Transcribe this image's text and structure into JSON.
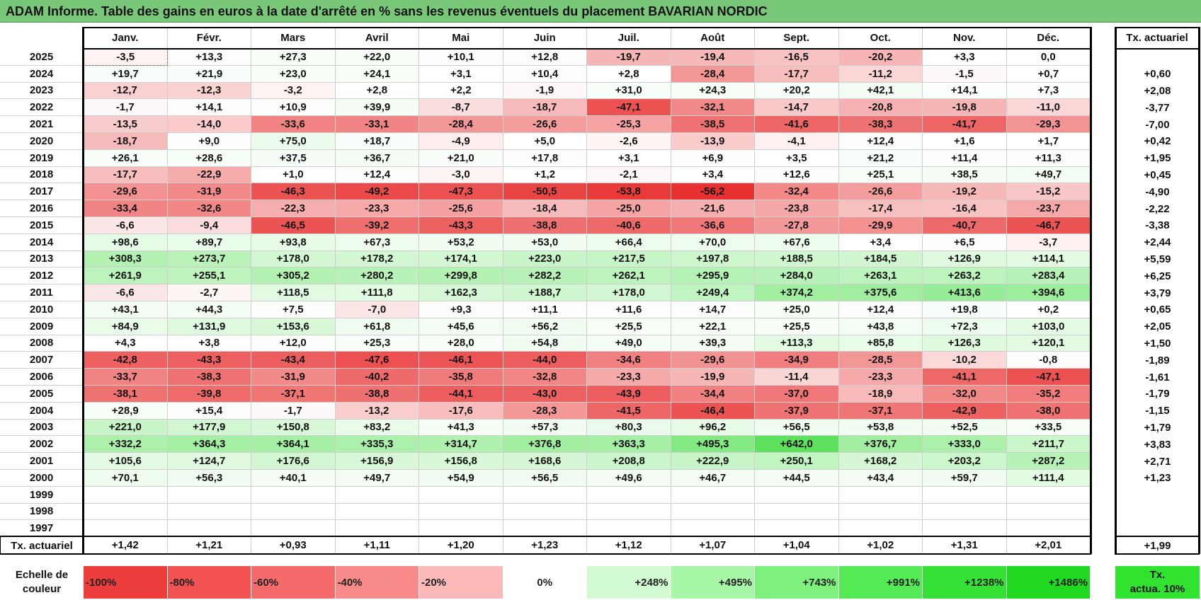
{
  "title": "ADAM Informe. Table des gains en euros à la date d'arrêté en % sans les revenus éventuels du placement BAVARIAN NORDIC",
  "months": [
    "Janv.",
    "Févr.",
    "Mars",
    "Avril",
    "Mai",
    "Juin",
    "Juil.",
    "Août",
    "Sept.",
    "Oct.",
    "Nov.",
    "Déc."
  ],
  "tx_header": "Tx. actuariel",
  "rows": [
    {
      "year": "2025",
      "values": [
        "-3,5",
        "+13,3",
        "+27,3",
        "+22,0",
        "+10,1",
        "+12,8",
        "-19,7",
        "-19,4",
        "-16,5",
        "-20,2",
        "+3,3",
        "0,0"
      ],
      "tx": ""
    },
    {
      "year": "2024",
      "values": [
        "+19,7",
        "+21,9",
        "+23,0",
        "+24,1",
        "+3,1",
        "+10,4",
        "+2,8",
        "-28,4",
        "-17,7",
        "-11,2",
        "-1,5",
        "+0,7"
      ],
      "tx": "+0,60"
    },
    {
      "year": "2023",
      "values": [
        "-12,7",
        "-12,3",
        "-3,2",
        "+2,8",
        "+2,2",
        "-1,9",
        "+31,0",
        "+24,3",
        "+20,2",
        "+42,1",
        "+14,1",
        "+7,3"
      ],
      "tx": "+2,08"
    },
    {
      "year": "2022",
      "values": [
        "-1,7",
        "+14,1",
        "+10,9",
        "+39,9",
        "-8,7",
        "-18,7",
        "-47,1",
        "-32,1",
        "-14,7",
        "-20,8",
        "-19,8",
        "-11,0"
      ],
      "tx": "-3,77"
    },
    {
      "year": "2021",
      "values": [
        "-13,5",
        "-14,0",
        "-33,6",
        "-33,1",
        "-28,4",
        "-26,6",
        "-25,3",
        "-38,5",
        "-41,6",
        "-38,3",
        "-41,7",
        "-29,3"
      ],
      "tx": "-7,00"
    },
    {
      "year": "2020",
      "values": [
        "-18,7",
        "+9,0",
        "+75,0",
        "+18,7",
        "-4,9",
        "+5,0",
        "-2,6",
        "-13,9",
        "-4,1",
        "+12,4",
        "+1,6",
        "+1,7"
      ],
      "tx": "+0,42"
    },
    {
      "year": "2019",
      "values": [
        "+26,1",
        "+28,6",
        "+37,5",
        "+36,7",
        "+21,0",
        "+17,8",
        "+3,1",
        "+6,9",
        "+3,5",
        "+21,2",
        "+11,4",
        "+11,3"
      ],
      "tx": "+1,95"
    },
    {
      "year": "2018",
      "values": [
        "-17,7",
        "-22,9",
        "+1,0",
        "+12,4",
        "-3,0",
        "+1,2",
        "-2,1",
        "+3,4",
        "+12,6",
        "+25,1",
        "+38,5",
        "+49,7"
      ],
      "tx": "+0,45"
    },
    {
      "year": "2017",
      "values": [
        "-29,6",
        "-31,9",
        "-46,3",
        "-49,2",
        "-47,3",
        "-50,5",
        "-53,8",
        "-56,2",
        "-32,4",
        "-26,6",
        "-19,2",
        "-15,2"
      ],
      "tx": "-4,90"
    },
    {
      "year": "2016",
      "values": [
        "-33,4",
        "-32,6",
        "-22,3",
        "-23,3",
        "-25,6",
        "-18,4",
        "-25,0",
        "-21,6",
        "-23,8",
        "-17,4",
        "-16,4",
        "-23,7"
      ],
      "tx": "-2,22"
    },
    {
      "year": "2015",
      "values": [
        "-6,6",
        "-9,4",
        "-46,5",
        "-39,2",
        "-43,3",
        "-38,8",
        "-40,6",
        "-36,6",
        "-27,8",
        "-29,9",
        "-40,7",
        "-46,7"
      ],
      "tx": "-3,38"
    },
    {
      "year": "2014",
      "values": [
        "+98,6",
        "+89,7",
        "+93,8",
        "+67,3",
        "+53,2",
        "+53,0",
        "+66,4",
        "+70,0",
        "+67,6",
        "+3,4",
        "+6,5",
        "-3,7"
      ],
      "tx": "+2,44"
    },
    {
      "year": "2013",
      "values": [
        "+308,3",
        "+273,7",
        "+178,0",
        "+178,2",
        "+174,1",
        "+223,0",
        "+217,5",
        "+197,8",
        "+188,5",
        "+184,5",
        "+126,9",
        "+114,1"
      ],
      "tx": "+5,59"
    },
    {
      "year": "2012",
      "values": [
        "+261,9",
        "+255,1",
        "+305,2",
        "+280,2",
        "+299,8",
        "+282,2",
        "+262,1",
        "+295,9",
        "+284,0",
        "+263,1",
        "+263,2",
        "+283,4"
      ],
      "tx": "+6,25"
    },
    {
      "year": "2011",
      "values": [
        "-6,6",
        "-2,7",
        "+118,5",
        "+111,8",
        "+162,3",
        "+188,7",
        "+178,0",
        "+249,4",
        "+374,2",
        "+375,6",
        "+413,6",
        "+394,6"
      ],
      "tx": "+3,79"
    },
    {
      "year": "2010",
      "values": [
        "+43,1",
        "+44,3",
        "+7,5",
        "-7,0",
        "+9,3",
        "+11,1",
        "+11,6",
        "+14,7",
        "+25,0",
        "+12,4",
        "+19,8",
        "+0,2"
      ],
      "tx": "+0,65"
    },
    {
      "year": "2009",
      "values": [
        "+84,9",
        "+131,9",
        "+153,6",
        "+61,8",
        "+45,6",
        "+56,2",
        "+25,5",
        "+22,1",
        "+25,5",
        "+43,8",
        "+72,3",
        "+103,0"
      ],
      "tx": "+2,05"
    },
    {
      "year": "2008",
      "values": [
        "+4,3",
        "+3,8",
        "+12,0",
        "+25,3",
        "+28,0",
        "+54,8",
        "+49,0",
        "+39,3",
        "+113,3",
        "+85,8",
        "+126,3",
        "+120,1"
      ],
      "tx": "+1,50"
    },
    {
      "year": "2007",
      "values": [
        "-42,8",
        "-43,3",
        "-43,4",
        "-47,6",
        "-46,1",
        "-44,0",
        "-34,6",
        "-29,6",
        "-34,9",
        "-28,5",
        "-10,2",
        "-0,8"
      ],
      "tx": "-1,89"
    },
    {
      "year": "2006",
      "values": [
        "-33,7",
        "-38,3",
        "-31,9",
        "-40,2",
        "-35,8",
        "-32,8",
        "-23,3",
        "-19,9",
        "-11,4",
        "-23,3",
        "-41,1",
        "-47,1"
      ],
      "tx": "-1,61"
    },
    {
      "year": "2005",
      "values": [
        "-38,1",
        "-39,8",
        "-37,1",
        "-38,8",
        "-44,1",
        "-43,0",
        "-43,9",
        "-34,4",
        "-37,0",
        "-18,9",
        "-32,0",
        "-35,2"
      ],
      "tx": "-1,79"
    },
    {
      "year": "2004",
      "values": [
        "+28,9",
        "+15,4",
        "-1,7",
        "-13,2",
        "-17,6",
        "-28,3",
        "-41,5",
        "-46,4",
        "-37,9",
        "-37,1",
        "-42,9",
        "-38,0"
      ],
      "tx": "-1,15"
    },
    {
      "year": "2003",
      "values": [
        "+221,0",
        "+177,9",
        "+150,8",
        "+83,2",
        "+41,3",
        "+57,3",
        "+80,3",
        "+96,2",
        "+56,5",
        "+53,8",
        "+52,5",
        "+33,5"
      ],
      "tx": "+1,79"
    },
    {
      "year": "2002",
      "values": [
        "+332,2",
        "+364,3",
        "+364,1",
        "+335,3",
        "+314,7",
        "+376,8",
        "+363,3",
        "+495,3",
        "+642,0",
        "+376,7",
        "+333,0",
        "+211,7"
      ],
      "tx": "+3,83"
    },
    {
      "year": "2001",
      "values": [
        "+105,6",
        "+124,7",
        "+176,6",
        "+156,9",
        "+156,8",
        "+168,6",
        "+208,8",
        "+222,9",
        "+250,1",
        "+168,2",
        "+203,2",
        "+287,2"
      ],
      "tx": "+2,71"
    },
    {
      "year": "2000",
      "values": [
        "+70,1",
        "+56,3",
        "+40,1",
        "+49,7",
        "+54,9",
        "+56,5",
        "+49,6",
        "+46,7",
        "+44,5",
        "+43,4",
        "+59,7",
        "+111,4"
      ],
      "tx": "+1,23"
    },
    {
      "year": "1999",
      "values": [
        "",
        "",
        "",
        "",
        "",
        "",
        "",
        "",
        "",
        "",
        "",
        ""
      ],
      "tx": ""
    },
    {
      "year": "1998",
      "values": [
        "",
        "",
        "",
        "",
        "",
        "",
        "",
        "",
        "",
        "",
        "",
        ""
      ],
      "tx": ""
    },
    {
      "year": "1997",
      "values": [
        "",
        "",
        "",
        "",
        "",
        "",
        "",
        "",
        "",
        "",
        "",
        ""
      ],
      "tx": ""
    }
  ],
  "footer": {
    "label": "Tx. actuariel",
    "values": [
      "+1,42",
      "+1,21",
      "+0,93",
      "+1,11",
      "+1,20",
      "+1,23",
      "+1,12",
      "+1,07",
      "+1,04",
      "+1,02",
      "+1,31",
      "+2,01"
    ],
    "tx": "+1,99"
  },
  "scale": {
    "label_line1": "Echelle de",
    "label_line2": "couleur",
    "items": [
      {
        "label": "-100%",
        "color": "#ee3d3d",
        "align": "left"
      },
      {
        "label": "-80%",
        "color": "#f25252",
        "align": "left"
      },
      {
        "label": "-60%",
        "color": "#f56a6a",
        "align": "left"
      },
      {
        "label": "-40%",
        "color": "#f88a8a",
        "align": "left"
      },
      {
        "label": "-20%",
        "color": "#fbb9b9",
        "align": "left"
      },
      {
        "label": "0%",
        "color": "#ffffff",
        "align": "center"
      },
      {
        "label": "+248%",
        "color": "#d2fbd2",
        "align": "right"
      },
      {
        "label": "+495%",
        "color": "#a8f6a8",
        "align": "right"
      },
      {
        "label": "+743%",
        "color": "#7ef07e",
        "align": "right"
      },
      {
        "label": "+991%",
        "color": "#55ea55",
        "align": "right"
      },
      {
        "label": "+1238%",
        "color": "#36e136",
        "align": "right"
      },
      {
        "label": "+1486%",
        "color": "#1fd81f",
        "align": "right"
      }
    ],
    "tx_line1": "Tx.",
    "tx_line2": "actua. 10%",
    "tx_color": "#2fe32f"
  },
  "colors": {
    "title_bg": "#79c879",
    "negative_max": "#e83030",
    "positive_max": "#19d619"
  }
}
